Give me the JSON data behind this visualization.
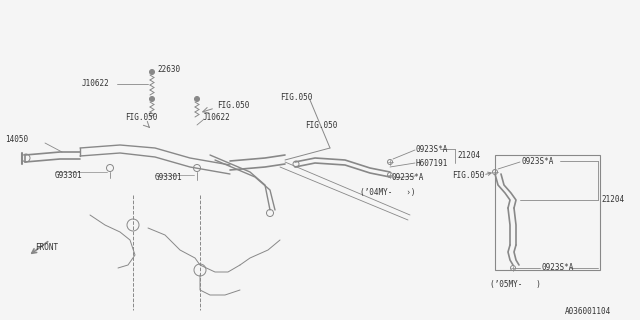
{
  "background_color": "#f5f5f5",
  "line_color": "#888888",
  "text_color": "#333333",
  "part_number": "A036001104",
  "font_size": 5.5,
  "labels": {
    "J10622_top": "J10622",
    "22630": "22630",
    "FIG050_left": "FIG.050",
    "FIG050_mid": "FIG.050",
    "FIG050_right": "FIG.050",
    "J10622_mid": "J10622",
    "14050": "14050",
    "G93301_left": "G93301",
    "G93301_right": "G93301",
    "0923SA_top": "0923S*A",
    "H607191": "H607191",
    "21204_top": "21204",
    "0923SA_mid": "0923S*A",
    "04MY": "(’04MY-   ›)",
    "0923SA_right_top": "0923S*A",
    "21204_right": "21204",
    "0923SA_right_bot": "0923S*A",
    "05MY": "(’05MY-   )",
    "FRONT": "FRONT"
  }
}
